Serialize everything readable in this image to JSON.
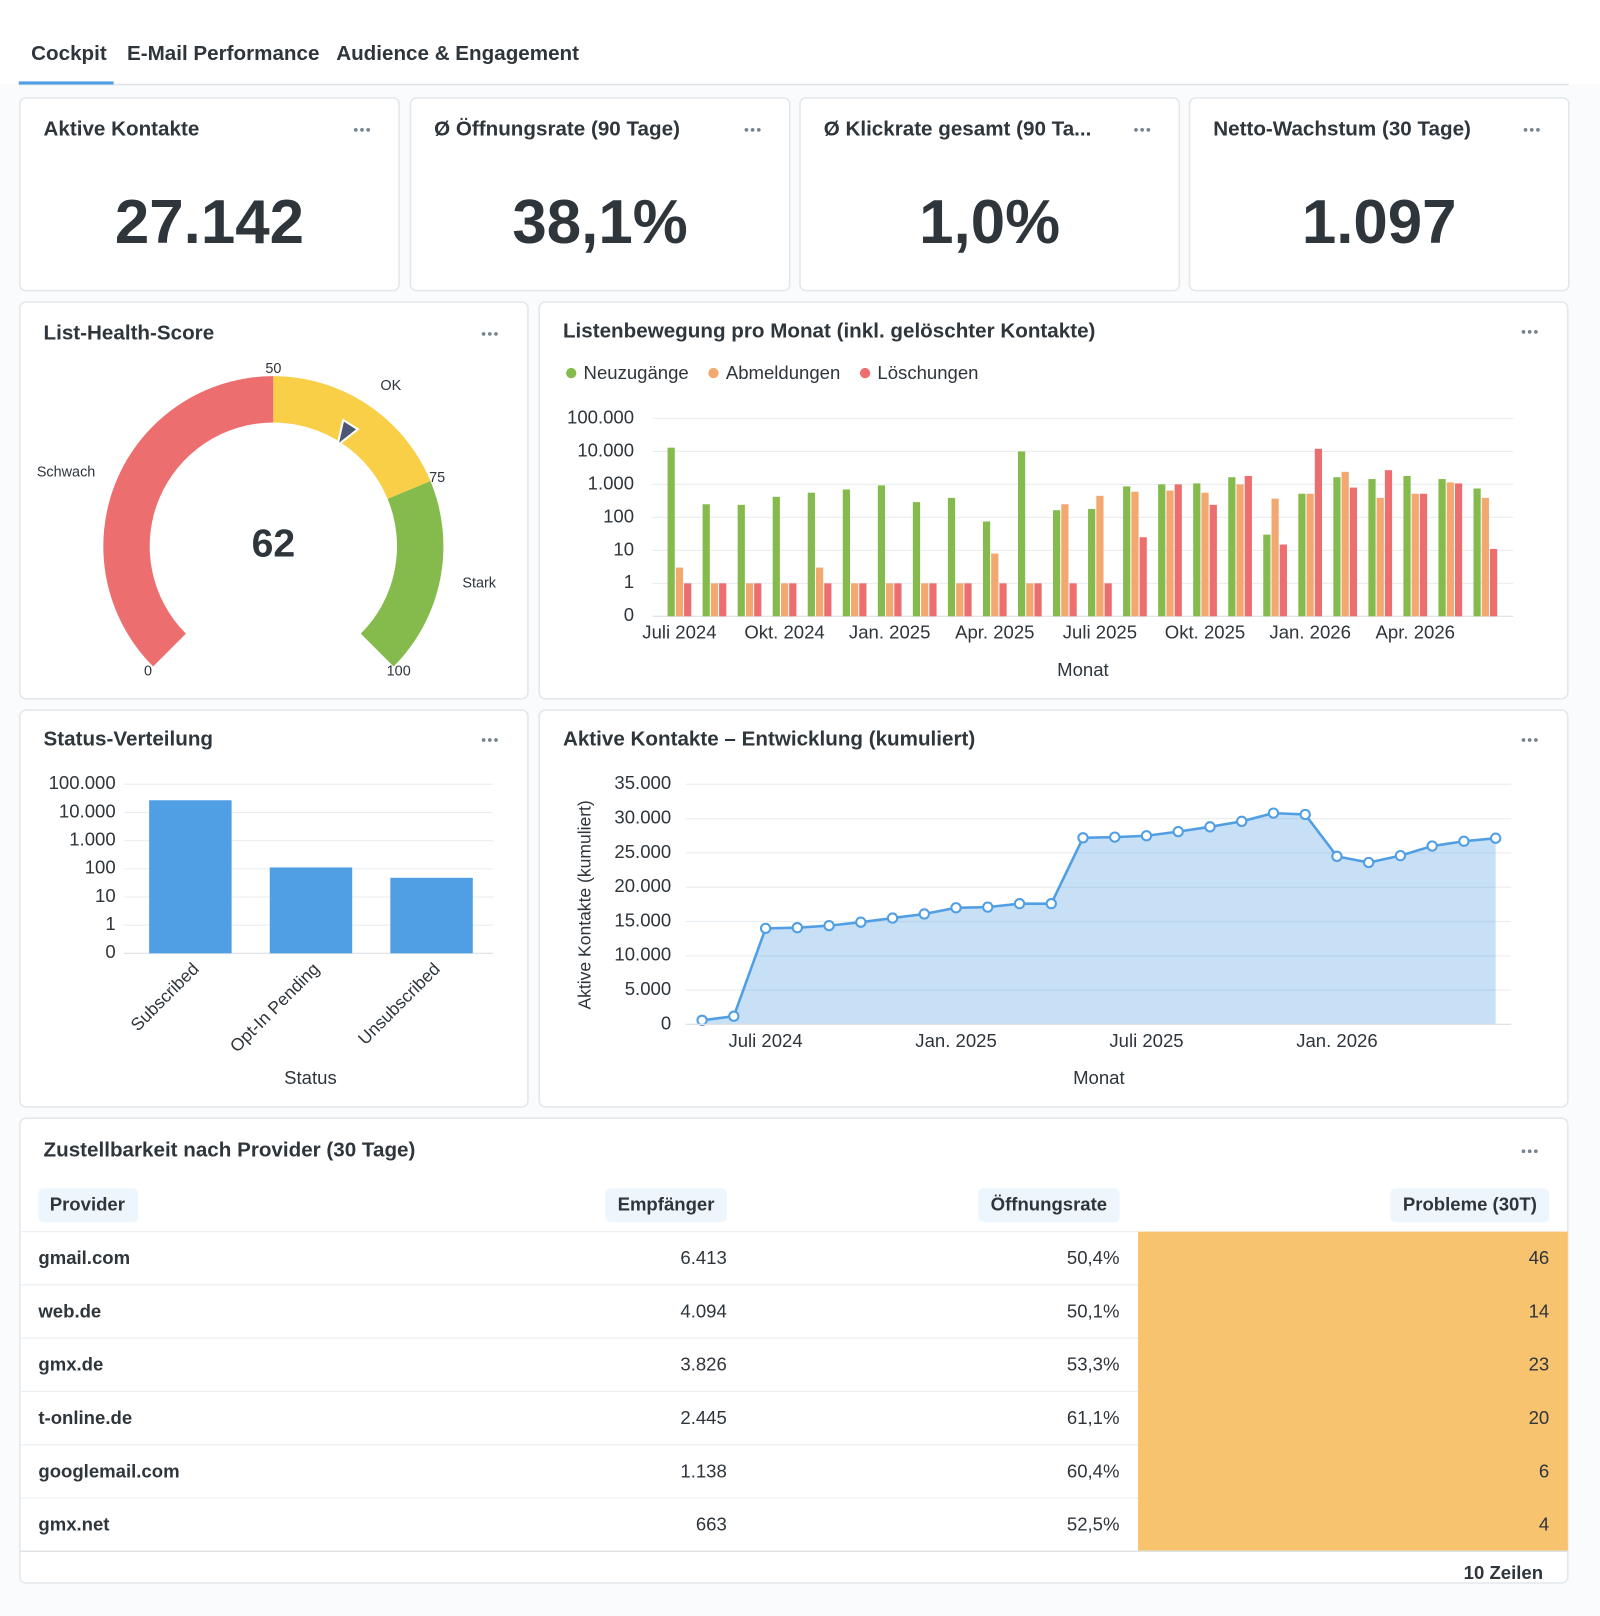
{
  "tabs": [
    "Cockpit",
    "E-Mail Performance",
    "Audience & Engagement"
  ],
  "kpis": [
    {
      "title": "Aktive Kontakte",
      "value": "27.142"
    },
    {
      "title": "Ø Öffnungsrate (90 Tage)",
      "value": "38,1%"
    },
    {
      "title": "Ø Klickrate gesamt (90 Ta...",
      "value": "1,0%"
    },
    {
      "title": "Netto-Wachstum (30 Tage)",
      "value": "1.097"
    }
  ],
  "chart_data": [
    {
      "type": "gauge",
      "title": "List-Health-Score",
      "value": 62,
      "ylim": [
        0,
        100
      ],
      "yticks": [
        0,
        50,
        75,
        100
      ],
      "bands": [
        {
          "name": "Schwach",
          "color": "#ed6e6e",
          "to": 50
        },
        {
          "name": "OK",
          "color": "#f9cf48",
          "to": 75
        },
        {
          "name": "Stark",
          "color": "#84bb4c",
          "to": 100
        }
      ]
    },
    {
      "type": "bar",
      "title": "Listenbewegung pro Monat (inkl. gelöschter Kontakte)",
      "x_label": "Monat",
      "categories": [
        "Juli 2024",
        null,
        null,
        "Okt. 2024",
        null,
        null,
        "Jan. 2025",
        null,
        null,
        "Apr. 2025",
        null,
        null,
        "Juli 2025",
        null,
        null,
        "Okt. 2025",
        null,
        null,
        "Jan. 2026",
        null,
        null,
        "Apr. 2026",
        null,
        null
      ],
      "series": [
        {
          "name": "Neuzugänge",
          "color": "#84bb4c",
          "values": [
            13000,
            250,
            240,
            420,
            560,
            700,
            930,
            290,
            390,
            75,
            10000,
            165,
            180,
            870,
            1000,
            1070,
            1650,
            30,
            520,
            1650,
            1450,
            1800,
            1450,
            750
          ]
        },
        {
          "name": "Abmeldungen",
          "color": "#f2a86f",
          "values": [
            3,
            1,
            1,
            1,
            3,
            1,
            1,
            1,
            1,
            8,
            1,
            250,
            450,
            600,
            650,
            560,
            1000,
            370,
            520,
            2400,
            390,
            520,
            1150,
            390
          ]
        },
        {
          "name": "Löschungen",
          "color": "#ed6e6e",
          "values": [
            1,
            1,
            1,
            1,
            1,
            1,
            1,
            1,
            1,
            1,
            1,
            1,
            1,
            25,
            1000,
            240,
            1800,
            15,
            12000,
            800,
            2700,
            520,
            1070,
            11
          ]
        }
      ],
      "log": true,
      "ylim": [
        0,
        100000
      ],
      "yticks": [
        0,
        1,
        10,
        100,
        {
          "value": 1000,
          "label": "1.000"
        },
        {
          "value": 10000,
          "label": "10.000"
        },
        {
          "value": 100000,
          "label": "100.000"
        }
      ],
      "grid": true,
      "legend": "top-left"
    },
    {
      "type": "bar",
      "title": "Status-Verteilung",
      "x_label": "Status",
      "categories": [
        "Subscribed",
        "Opt-In Pending",
        "Unsubscribed"
      ],
      "values": [
        27142,
        112,
        48
      ],
      "color": "#509ee3",
      "log": true,
      "ylim": [
        0,
        100000
      ],
      "yticks": [
        0,
        1,
        10,
        100,
        {
          "value": 1000,
          "label": "1.000"
        },
        {
          "value": 10000,
          "label": "10.000"
        },
        {
          "value": 100000,
          "label": "100.000"
        }
      ],
      "grid": true
    },
    {
      "type": "area",
      "title": "Aktive Kontakte – Entwicklung (kumuliert)",
      "x_label": "Monat",
      "y_label": "Aktive Kontakte (kumuliert)",
      "categories": [
        null,
        null,
        "Juli 2024",
        null,
        null,
        null,
        null,
        null,
        "Jan. 2025",
        null,
        null,
        null,
        null,
        null,
        "Juli 2025",
        null,
        null,
        null,
        null,
        null,
        "Jan. 2026",
        null,
        null,
        null,
        null,
        null
      ],
      "values": [
        600,
        1200,
        14000,
        14100,
        14400,
        14900,
        15500,
        16100,
        17000,
        17100,
        17600,
        17600,
        27200,
        27300,
        27500,
        28100,
        28800,
        29600,
        30800,
        30600,
        24500,
        23600,
        24600,
        26000,
        26700,
        27142
      ],
      "color": "#509ee3",
      "ylim": [
        0,
        35000
      ],
      "yticks": [
        0,
        {
          "value": 5000,
          "label": "5.000"
        },
        {
          "value": 10000,
          "label": "10.000"
        },
        {
          "value": 15000,
          "label": "15.000"
        },
        {
          "value": 20000,
          "label": "20.000"
        },
        {
          "value": 25000,
          "label": "25.000"
        },
        {
          "value": 30000,
          "label": "30.000"
        },
        {
          "value": 35000,
          "label": "35.000"
        }
      ],
      "grid": true
    }
  ],
  "table": {
    "title": "Zustellbarkeit nach Provider (30 Tage)",
    "columns": [
      "Provider",
      "Empfänger",
      "Öffnungsrate",
      "Probleme (30T)"
    ],
    "rows": [
      [
        "gmail.com",
        "6.413",
        "50,4%",
        "46"
      ],
      [
        "web.de",
        "4.094",
        "50,1%",
        "14"
      ],
      [
        "gmx.de",
        "3.826",
        "53,3%",
        "23"
      ],
      [
        "t-online.de",
        "2.445",
        "61,1%",
        "20"
      ],
      [
        "googlemail.com",
        "1.138",
        "60,4%",
        "6"
      ],
      [
        "gmx.net",
        "663",
        "52,5%",
        "4"
      ]
    ],
    "footer": "10 Zeilen"
  }
}
